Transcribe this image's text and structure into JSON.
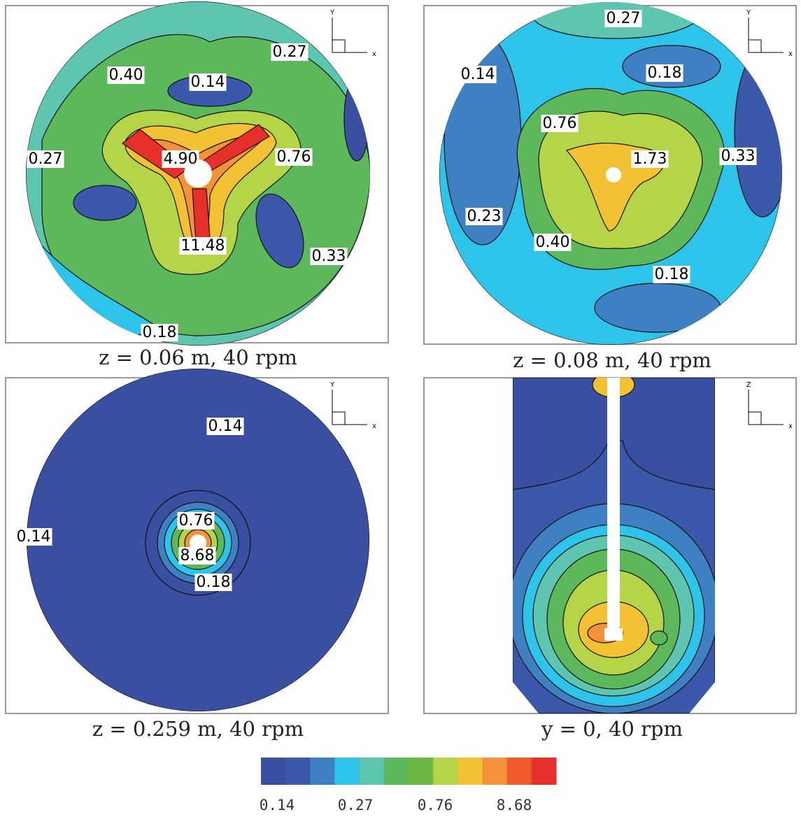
{
  "panels": [
    {
      "caption": "z = 0.06 m, 40 rpm",
      "triad": {
        "vertical": "Y",
        "horizontal": "x"
      },
      "labels": [
        "0.40",
        "0.14",
        "0.27",
        "0.27",
        "4.90",
        "0.76",
        "11.48",
        "0.33",
        "0.18"
      ]
    },
    {
      "caption": "z = 0.08 m, 40 rpm",
      "triad": {
        "vertical": "Y",
        "horizontal": "x"
      },
      "labels": [
        "0.27",
        "0.14",
        "0.18",
        "0.76",
        "1.73",
        "0.33",
        "0.23",
        "0.40",
        "0.18"
      ]
    },
    {
      "caption": "z = 0.259 m, 40 rpm",
      "triad": {
        "vertical": "Y",
        "horizontal": "x"
      },
      "labels": [
        "0.14",
        "0.14",
        "0.76",
        "8.68",
        "0.18"
      ]
    },
    {
      "caption": "y = 0, 40 rpm",
      "triad": {
        "vertical": "Z",
        "horizontal": "x"
      },
      "labels": []
    }
  ],
  "colorbar": {
    "colors": [
      "#3a4fa0",
      "#3b58aa",
      "#3f80c2",
      "#2ec4ea",
      "#5ec6b0",
      "#5cb85a",
      "#6db844",
      "#b5d548",
      "#f2c234",
      "#f3923a",
      "#ee5a2c",
      "#e8302a"
    ],
    "ticks": [
      "0.14",
      "0.27",
      "0.76",
      "8.68"
    ]
  }
}
